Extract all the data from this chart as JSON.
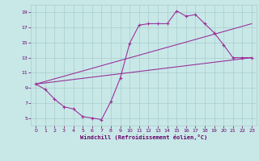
{
  "background_color": "#c8e8e8",
  "grid_color": "#aacccc",
  "line_color": "#993399",
  "marker_color": "#993399",
  "xlabel": "Windchill (Refroidissement éolien,°C)",
  "xlabel_color": "#660066",
  "tick_color": "#660066",
  "xlim": [
    -0.5,
    23.5
  ],
  "ylim": [
    4,
    20
  ],
  "xticks": [
    0,
    1,
    2,
    3,
    4,
    5,
    6,
    7,
    8,
    9,
    10,
    11,
    12,
    13,
    14,
    15,
    16,
    17,
    18,
    19,
    20,
    21,
    22,
    23
  ],
  "yticks": [
    5,
    7,
    9,
    11,
    13,
    15,
    17,
    19
  ],
  "series_main": {
    "x": [
      0,
      1,
      2,
      3,
      4,
      5,
      6,
      7,
      8,
      9,
      10,
      11,
      12,
      13,
      14,
      15,
      16,
      17,
      18,
      19,
      20,
      21,
      22,
      23
    ],
    "y": [
      9.5,
      8.8,
      7.5,
      6.5,
      6.2,
      5.2,
      5.0,
      4.8,
      7.2,
      10.3,
      14.9,
      17.3,
      17.5,
      17.5,
      17.5,
      19.2,
      18.5,
      18.7,
      17.5,
      16.3,
      14.7,
      13.0,
      13.0,
      13.0
    ]
  },
  "line1": {
    "x": [
      0,
      23
    ],
    "y": [
      9.5,
      13.0
    ]
  },
  "line2": {
    "x": [
      0,
      23
    ],
    "y": [
      9.5,
      17.5
    ]
  }
}
